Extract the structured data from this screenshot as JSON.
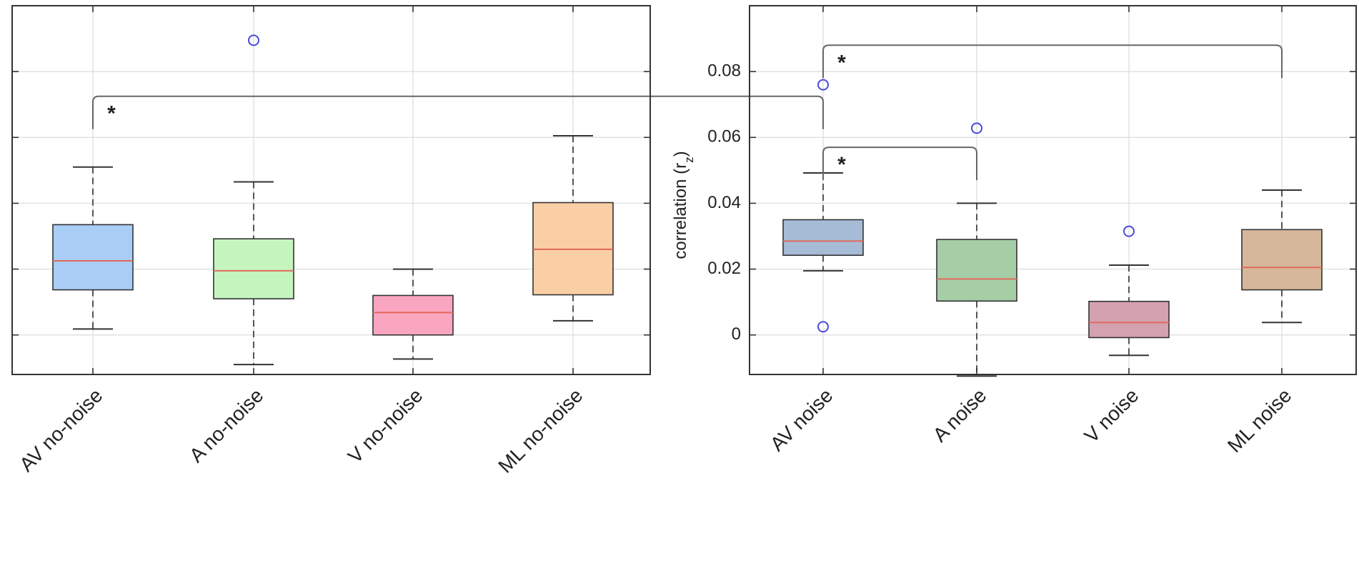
{
  "chart_data": {
    "type": "boxplot",
    "ylabel": "correlation (r",
    "ylabel_sub": "z",
    "ylabel_close": ")",
    "ylim": [
      -0.012,
      0.1
    ],
    "yticks": [
      0,
      0.02,
      0.04,
      0.06,
      0.08
    ],
    "ytick_labels": [
      "0",
      "0.02",
      "0.04",
      "0.06",
      "0.08"
    ],
    "grid": true,
    "colors": {
      "whisker": "#555555",
      "median": "#e06a5a",
      "outlier": "#4a4ae0",
      "axis": "#333333",
      "grid": "#dcdcdc",
      "bracket": "#666666"
    },
    "panels": [
      {
        "name": "no-noise",
        "show_ytick_labels": false,
        "categories": [
          "AV no-noise",
          "A no-noise",
          "V no-noise",
          "ML no-noise"
        ],
        "boxes": [
          {
            "label": "AV no-noise",
            "whisker_low": 0.0018,
            "q1": 0.0137,
            "median": 0.0225,
            "q3": 0.0335,
            "whisker_high": 0.051,
            "outliers": [],
            "color": "#a9cdf5"
          },
          {
            "label": "A no-noise",
            "whisker_low": -0.009,
            "q1": 0.011,
            "median": 0.0195,
            "q3": 0.0292,
            "whisker_high": 0.0465,
            "outliers": [
              0.0895
            ],
            "color": "#c5f5bf"
          },
          {
            "label": "V no-noise",
            "whisker_low": -0.0073,
            "q1": 0.0,
            "median": 0.0068,
            "q3": 0.012,
            "whisker_high": 0.02,
            "outliers": [],
            "color": "#fba6c0"
          },
          {
            "label": "ML no-noise",
            "whisker_low": 0.0043,
            "q1": 0.0122,
            "median": 0.026,
            "q3": 0.0402,
            "whisker_high": 0.0605,
            "outliers": [],
            "color": "#fbcfa5"
          }
        ]
      },
      {
        "name": "noise",
        "show_ytick_labels": true,
        "categories": [
          "AV noise",
          "A noise",
          "V noise",
          "ML noise"
        ],
        "boxes": [
          {
            "label": "AV noise",
            "whisker_low": 0.0195,
            "q1": 0.0242,
            "median": 0.0285,
            "q3": 0.035,
            "whisker_high": 0.0492,
            "outliers": [
              0.076,
              0.0025
            ],
            "color": "#a6bcd6"
          },
          {
            "label": "A noise",
            "whisker_low": -0.0125,
            "q1": 0.0103,
            "median": 0.017,
            "q3": 0.029,
            "whisker_high": 0.04,
            "outliers": [
              0.0628
            ],
            "color": "#a5cea6"
          },
          {
            "label": "V noise",
            "whisker_low": -0.0062,
            "q1": -0.0008,
            "median": 0.0038,
            "q3": 0.0102,
            "whisker_high": 0.0212,
            "outliers": [
              0.0315
            ],
            "color": "#d4a1b0"
          },
          {
            "label": "ML noise",
            "whisker_low": 0.0038,
            "q1": 0.0137,
            "median": 0.0205,
            "q3": 0.032,
            "whisker_high": 0.044,
            "outliers": [],
            "color": "#d6b79b"
          }
        ]
      }
    ],
    "annotations": [
      {
        "text": "*",
        "from": [
          0,
          0
        ],
        "to": [
          1,
          0
        ],
        "y": 0.0725
      },
      {
        "text": "*",
        "from": [
          1,
          0
        ],
        "to": [
          1,
          3
        ],
        "y": 0.088
      },
      {
        "text": "*",
        "from": [
          1,
          0
        ],
        "to": [
          1,
          1
        ],
        "y": 0.057
      }
    ]
  }
}
